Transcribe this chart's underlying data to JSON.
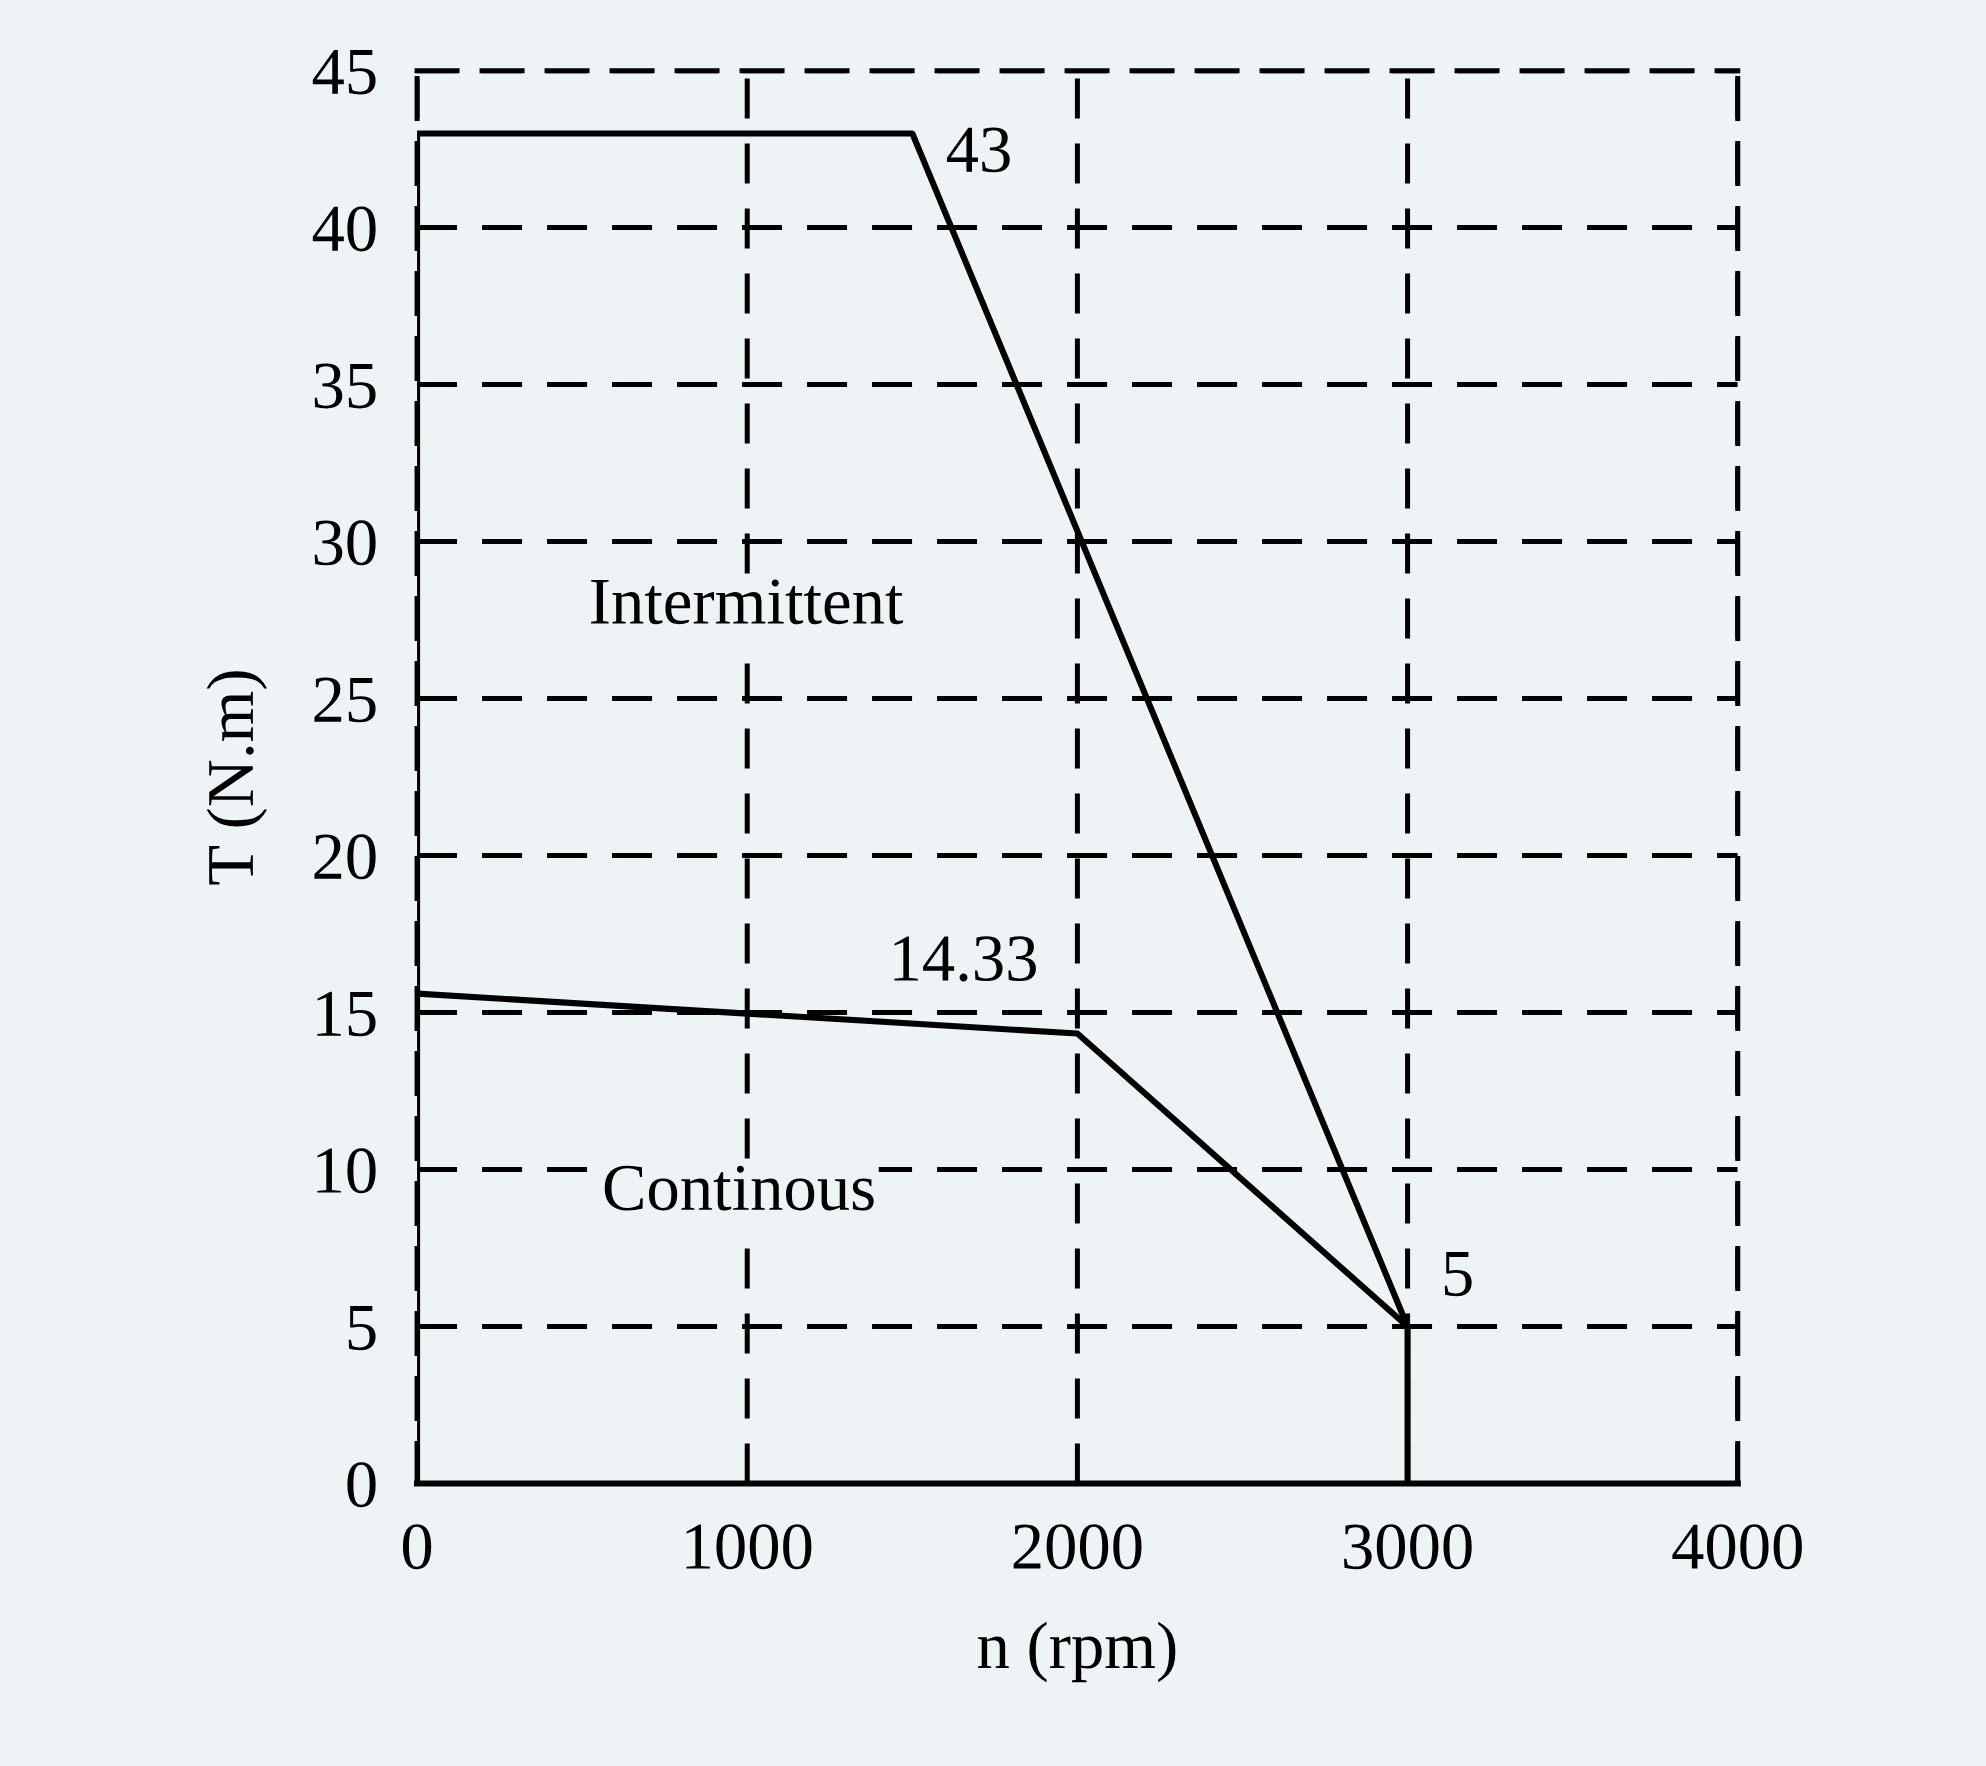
{
  "chart_data": {
    "type": "line",
    "xlabel": "n (rpm)",
    "ylabel": "T (N.m)",
    "series": [
      {
        "color": "#000000",
        "x": [
          0,
          0,
          1500,
          3000,
          3000
        ],
        "values": [
          0,
          43,
          43,
          5,
          0
        ]
      },
      {
        "color": "#000000",
        "x": [
          0,
          2000,
          3000
        ],
        "values": [
          15.6,
          14.33,
          5
        ]
      }
    ],
    "xlim": [
      0,
      4000
    ],
    "xticks": [
      0,
      1000,
      2000,
      3000,
      4000
    ],
    "ylim": [
      0,
      45
    ],
    "yticks": [
      0,
      5,
      10,
      15,
      20,
      25,
      30,
      35,
      40,
      45
    ],
    "grid": true,
    "legend": false,
    "annotations": [
      {
        "text": "43",
        "x": 1500,
        "y": 43
      },
      {
        "text": "14.33",
        "x": 2000,
        "y": 14.33
      },
      {
        "text": "5",
        "x": 3000,
        "y": 5
      },
      "Intermittent",
      "Continous"
    ]
  }
}
